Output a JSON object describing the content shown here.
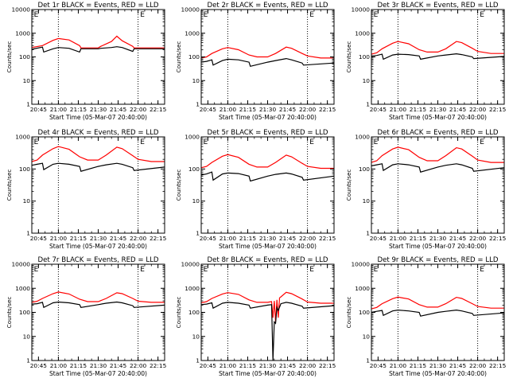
{
  "chart_data": [
    {
      "type": "line",
      "title": "Det 1r BLACK = Events, RED = LLD",
      "xlabel": "Start Time (05-Mar-07 20:40:00)",
      "ylabel": "Counts/sec",
      "yscale": "log",
      "ylim": [
        1,
        10000
      ],
      "xlim": [
        "20:40",
        "22:20"
      ],
      "series": [
        {
          "color": "#ff0000",
          "x": [
            "20:40",
            "20:48",
            "20:56",
            "21:00",
            "21:08",
            "21:16",
            "21:17",
            "21:30",
            "21:32",
            "21:40",
            "21:44",
            "21:48",
            "21:56",
            "21:57",
            "22:20"
          ],
          "values": [
            250,
            300,
            500,
            600,
            520,
            300,
            240,
            240,
            280,
            450,
            750,
            480,
            280,
            240,
            240
          ]
        },
        {
          "color": "#000000",
          "x": [
            "20:40",
            "20:48",
            "20:49",
            "20:56",
            "21:00",
            "21:08",
            "21:16",
            "21:17",
            "21:30",
            "21:32",
            "21:40",
            "21:44",
            "21:48",
            "21:56",
            "21:57",
            "22:20"
          ],
          "values": [
            210,
            260,
            160,
            220,
            250,
            230,
            160,
            220,
            220,
            230,
            250,
            270,
            250,
            170,
            220,
            220
          ]
        }
      ],
      "markers": [
        "E",
        "E"
      ]
    },
    {
      "type": "line",
      "title": "Det 2r BLACK = Events, RED = LLD",
      "xlabel": "Start Time (05-Mar-07 20:40:00)",
      "ylabel": "Counts/sec",
      "yscale": "log",
      "ylim": [
        1,
        10000
      ],
      "xlim": [
        "20:40",
        "22:20"
      ],
      "series": [
        {
          "color": "#ff0000",
          "x": [
            "20:40",
            "20:44",
            "20:48",
            "20:56",
            "21:00",
            "21:08",
            "21:16",
            "21:22",
            "21:30",
            "21:36",
            "21:44",
            "21:48",
            "21:56",
            "22:00",
            "22:10",
            "22:20"
          ],
          "values": [
            90,
            100,
            140,
            220,
            250,
            200,
            120,
            100,
            100,
            140,
            260,
            230,
            140,
            110,
            90,
            90
          ]
        },
        {
          "color": "#000000",
          "x": [
            "20:40",
            "20:44",
            "20:48",
            "20:49",
            "20:56",
            "21:00",
            "21:08",
            "21:16",
            "21:17",
            "21:30",
            "21:36",
            "21:44",
            "21:48",
            "21:56",
            "21:57",
            "22:20"
          ],
          "values": [
            60,
            65,
            75,
            45,
            70,
            80,
            75,
            60,
            40,
            60,
            70,
            85,
            75,
            55,
            45,
            55
          ]
        }
      ],
      "markers": [
        "E",
        "E"
      ]
    },
    {
      "type": "line",
      "title": "Det 3r BLACK = Events, RED = LLD",
      "xlabel": "Start Time (05-Mar-07 20:40:00)",
      "ylabel": "Counts/sec",
      "yscale": "log",
      "ylim": [
        1,
        10000
      ],
      "xlim": [
        "20:40",
        "22:20"
      ],
      "series": [
        {
          "color": "#ff0000",
          "x": [
            "20:40",
            "20:44",
            "20:48",
            "20:56",
            "21:00",
            "21:08",
            "21:16",
            "21:22",
            "21:30",
            "21:36",
            "21:44",
            "21:48",
            "21:56",
            "22:00",
            "22:10",
            "22:20"
          ],
          "values": [
            130,
            150,
            220,
            380,
            450,
            360,
            200,
            160,
            160,
            220,
            450,
            400,
            230,
            170,
            140,
            140
          ]
        },
        {
          "color": "#000000",
          "x": [
            "20:40",
            "20:44",
            "20:48",
            "20:49",
            "20:56",
            "21:00",
            "21:08",
            "21:16",
            "21:17",
            "21:30",
            "21:36",
            "21:44",
            "21:48",
            "21:56",
            "21:57",
            "22:20"
          ],
          "values": [
            110,
            115,
            130,
            80,
            120,
            130,
            125,
            110,
            80,
            110,
            120,
            135,
            125,
            100,
            85,
            105
          ]
        }
      ],
      "markers": [
        "E",
        "E"
      ]
    },
    {
      "type": "line",
      "title": "Det 4r BLACK = Events, RED = LLD",
      "xlabel": "Start Time (05-Mar-07 20:40:00)",
      "ylabel": "Counts/sec",
      "yscale": "log",
      "ylim": [
        1,
        1000
      ],
      "xlim": [
        "20:40",
        "22:20"
      ],
      "series": [
        {
          "color": "#ff0000",
          "x": [
            "20:40",
            "20:44",
            "20:48",
            "20:56",
            "21:00",
            "21:08",
            "21:16",
            "21:22",
            "21:30",
            "21:36",
            "21:44",
            "21:48",
            "21:56",
            "22:00",
            "22:10",
            "22:20"
          ],
          "values": [
            170,
            190,
            270,
            430,
            500,
            410,
            240,
            190,
            190,
            270,
            480,
            430,
            260,
            200,
            170,
            170
          ]
        },
        {
          "color": "#000000",
          "x": [
            "20:40",
            "20:44",
            "20:48",
            "20:49",
            "20:56",
            "21:00",
            "21:08",
            "21:16",
            "21:17",
            "21:30",
            "21:36",
            "21:44",
            "21:48",
            "21:56",
            "21:57",
            "22:20"
          ],
          "values": [
            130,
            140,
            150,
            95,
            140,
            150,
            140,
            120,
            85,
            120,
            135,
            150,
            140,
            110,
            90,
            115
          ]
        }
      ],
      "markers": [
        "E",
        "E"
      ]
    },
    {
      "type": "line",
      "title": "Det 5r BLACK = Events, RED = LLD",
      "xlabel": "Start Time (05-Mar-07 20:40:00)",
      "ylabel": "Counts/sec",
      "yscale": "log",
      "ylim": [
        1,
        1000
      ],
      "xlim": [
        "20:40",
        "22:20"
      ],
      "series": [
        {
          "color": "#ff0000",
          "x": [
            "20:40",
            "20:44",
            "20:48",
            "20:56",
            "21:00",
            "21:08",
            "21:16",
            "21:22",
            "21:30",
            "21:36",
            "21:44",
            "21:48",
            "21:56",
            "22:00",
            "22:10",
            "22:20"
          ],
          "values": [
            110,
            120,
            160,
            250,
            280,
            230,
            140,
            115,
            115,
            160,
            270,
            240,
            150,
            120,
            105,
            105
          ]
        },
        {
          "color": "#000000",
          "x": [
            "20:40",
            "20:44",
            "20:48",
            "20:49",
            "20:56",
            "21:00",
            "21:08",
            "21:16",
            "21:17",
            "21:30",
            "21:36",
            "21:44",
            "21:48",
            "21:56",
            "21:57",
            "22:20"
          ],
          "values": [
            65,
            70,
            80,
            45,
            70,
            75,
            72,
            60,
            42,
            60,
            68,
            75,
            70,
            55,
            45,
            60
          ]
        }
      ],
      "markers": [
        "E",
        "E"
      ]
    },
    {
      "type": "line",
      "title": "Det 6r BLACK = Events, RED = LLD",
      "xlabel": "Start Time (05-Mar-07 20:40:00)",
      "ylabel": "Counts/sec",
      "yscale": "log",
      "ylim": [
        1,
        1000
      ],
      "xlim": [
        "20:40",
        "22:20"
      ],
      "series": [
        {
          "color": "#ff0000",
          "x": [
            "20:40",
            "20:44",
            "20:48",
            "20:56",
            "21:00",
            "21:08",
            "21:16",
            "21:22",
            "21:30",
            "21:36",
            "21:44",
            "21:48",
            "21:56",
            "22:00",
            "22:10",
            "22:20"
          ],
          "values": [
            160,
            180,
            260,
            420,
            480,
            400,
            230,
            180,
            180,
            260,
            460,
            420,
            250,
            190,
            160,
            160
          ]
        },
        {
          "color": "#000000",
          "x": [
            "20:40",
            "20:44",
            "20:48",
            "20:49",
            "20:56",
            "21:00",
            "21:08",
            "21:16",
            "21:17",
            "21:30",
            "21:36",
            "21:44",
            "21:48",
            "21:56",
            "21:57",
            "22:20"
          ],
          "values": [
            125,
            135,
            145,
            90,
            135,
            145,
            135,
            115,
            80,
            115,
            130,
            145,
            135,
            105,
            85,
            110
          ]
        }
      ],
      "markers": [
        "E",
        "E"
      ]
    },
    {
      "type": "line",
      "title": "Det 7r BLACK = Events, RED = LLD",
      "xlabel": "Start Time (05-Mar-07 20:40:00)",
      "ylabel": "Counts/sec",
      "yscale": "log",
      "ylim": [
        1,
        10000
      ],
      "xlim": [
        "20:40",
        "22:20"
      ],
      "series": [
        {
          "color": "#ff0000",
          "x": [
            "20:40",
            "20:44",
            "20:48",
            "20:56",
            "21:00",
            "21:08",
            "21:16",
            "21:22",
            "21:30",
            "21:36",
            "21:44",
            "21:48",
            "21:56",
            "22:00",
            "22:10",
            "22:20"
          ],
          "values": [
            260,
            290,
            380,
            600,
            700,
            580,
            350,
            280,
            280,
            380,
            650,
            600,
            380,
            290,
            260,
            260
          ]
        },
        {
          "color": "#000000",
          "x": [
            "20:40",
            "20:44",
            "20:48",
            "20:49",
            "20:56",
            "21:00",
            "21:08",
            "21:16",
            "21:17",
            "21:30",
            "21:36",
            "21:44",
            "21:48",
            "21:56",
            "21:57",
            "22:20"
          ],
          "values": [
            220,
            230,
            260,
            160,
            250,
            270,
            250,
            210,
            160,
            210,
            240,
            270,
            250,
            190,
            160,
            200
          ]
        }
      ],
      "markers": [
        "E",
        "E"
      ]
    },
    {
      "type": "line",
      "title": "Det 8r BLACK = Events, RED = LLD",
      "xlabel": "Start Time (05-Mar-07 20:40:00)",
      "ylabel": "Counts/sec",
      "yscale": "log",
      "ylim": [
        1,
        10000
      ],
      "xlim": [
        "20:40",
        "22:20"
      ],
      "series": [
        {
          "color": "#ff0000",
          "x": [
            "20:40",
            "20:44",
            "20:48",
            "20:56",
            "21:00",
            "21:08",
            "21:16",
            "21:22",
            "21:30",
            "21:33",
            "21:34",
            "21:35",
            "21:36",
            "21:37",
            "21:38",
            "21:39",
            "21:40",
            "21:44",
            "21:48",
            "21:56",
            "22:00",
            "22:10",
            "22:20"
          ],
          "values": [
            250,
            280,
            380,
            580,
            660,
            560,
            330,
            260,
            260,
            280,
            60,
            300,
            40,
            330,
            60,
            400,
            440,
            680,
            600,
            360,
            270,
            240,
            240
          ]
        },
        {
          "color": "#000000",
          "x": [
            "20:40",
            "20:44",
            "20:48",
            "20:49",
            "20:56",
            "21:00",
            "21:08",
            "21:16",
            "21:17",
            "21:30",
            "21:33",
            "21:34",
            "21:35",
            "21:36",
            "21:37",
            "21:38",
            "21:40",
            "21:44",
            "21:48",
            "21:56",
            "21:57",
            "22:20"
          ],
          "values": [
            210,
            220,
            250,
            150,
            240,
            260,
            240,
            200,
            150,
            200,
            210,
            1,
            40,
            35,
            160,
            120,
            230,
            260,
            240,
            180,
            150,
            190
          ]
        }
      ],
      "markers": [
        "E",
        "E"
      ]
    },
    {
      "type": "line",
      "title": "Det 9r BLACK = Events, RED = LLD",
      "xlabel": "Start Time (05-Mar-07 20:40:00)",
      "ylabel": "Counts/sec",
      "yscale": "log",
      "ylim": [
        1,
        10000
      ],
      "xlim": [
        "20:40",
        "22:20"
      ],
      "series": [
        {
          "color": "#ff0000",
          "x": [
            "20:40",
            "20:44",
            "20:48",
            "20:56",
            "21:00",
            "21:08",
            "21:16",
            "21:22",
            "21:30",
            "21:36",
            "21:44",
            "21:48",
            "21:56",
            "22:00",
            "22:10",
            "22:20"
          ],
          "values": [
            140,
            160,
            230,
            370,
            430,
            360,
            210,
            165,
            165,
            230,
            420,
            380,
            230,
            175,
            150,
            150
          ]
        },
        {
          "color": "#000000",
          "x": [
            "20:40",
            "20:44",
            "20:48",
            "20:49",
            "20:56",
            "21:00",
            "21:08",
            "21:16",
            "21:17",
            "21:30",
            "21:36",
            "21:44",
            "21:48",
            "21:56",
            "21:57",
            "22:20"
          ],
          "values": [
            100,
            110,
            120,
            75,
            115,
            125,
            115,
            100,
            70,
            100,
            110,
            125,
            115,
            90,
            75,
            95
          ]
        }
      ],
      "markers": [
        "E",
        "E"
      ]
    }
  ],
  "xticks": [
    "20:45",
    "21:00",
    "21:15",
    "21:30",
    "21:45",
    "22:00",
    "22:15"
  ],
  "vlines": [
    "21:00",
    "22:00"
  ],
  "marker_times": [
    "20:41",
    "22:01"
  ]
}
